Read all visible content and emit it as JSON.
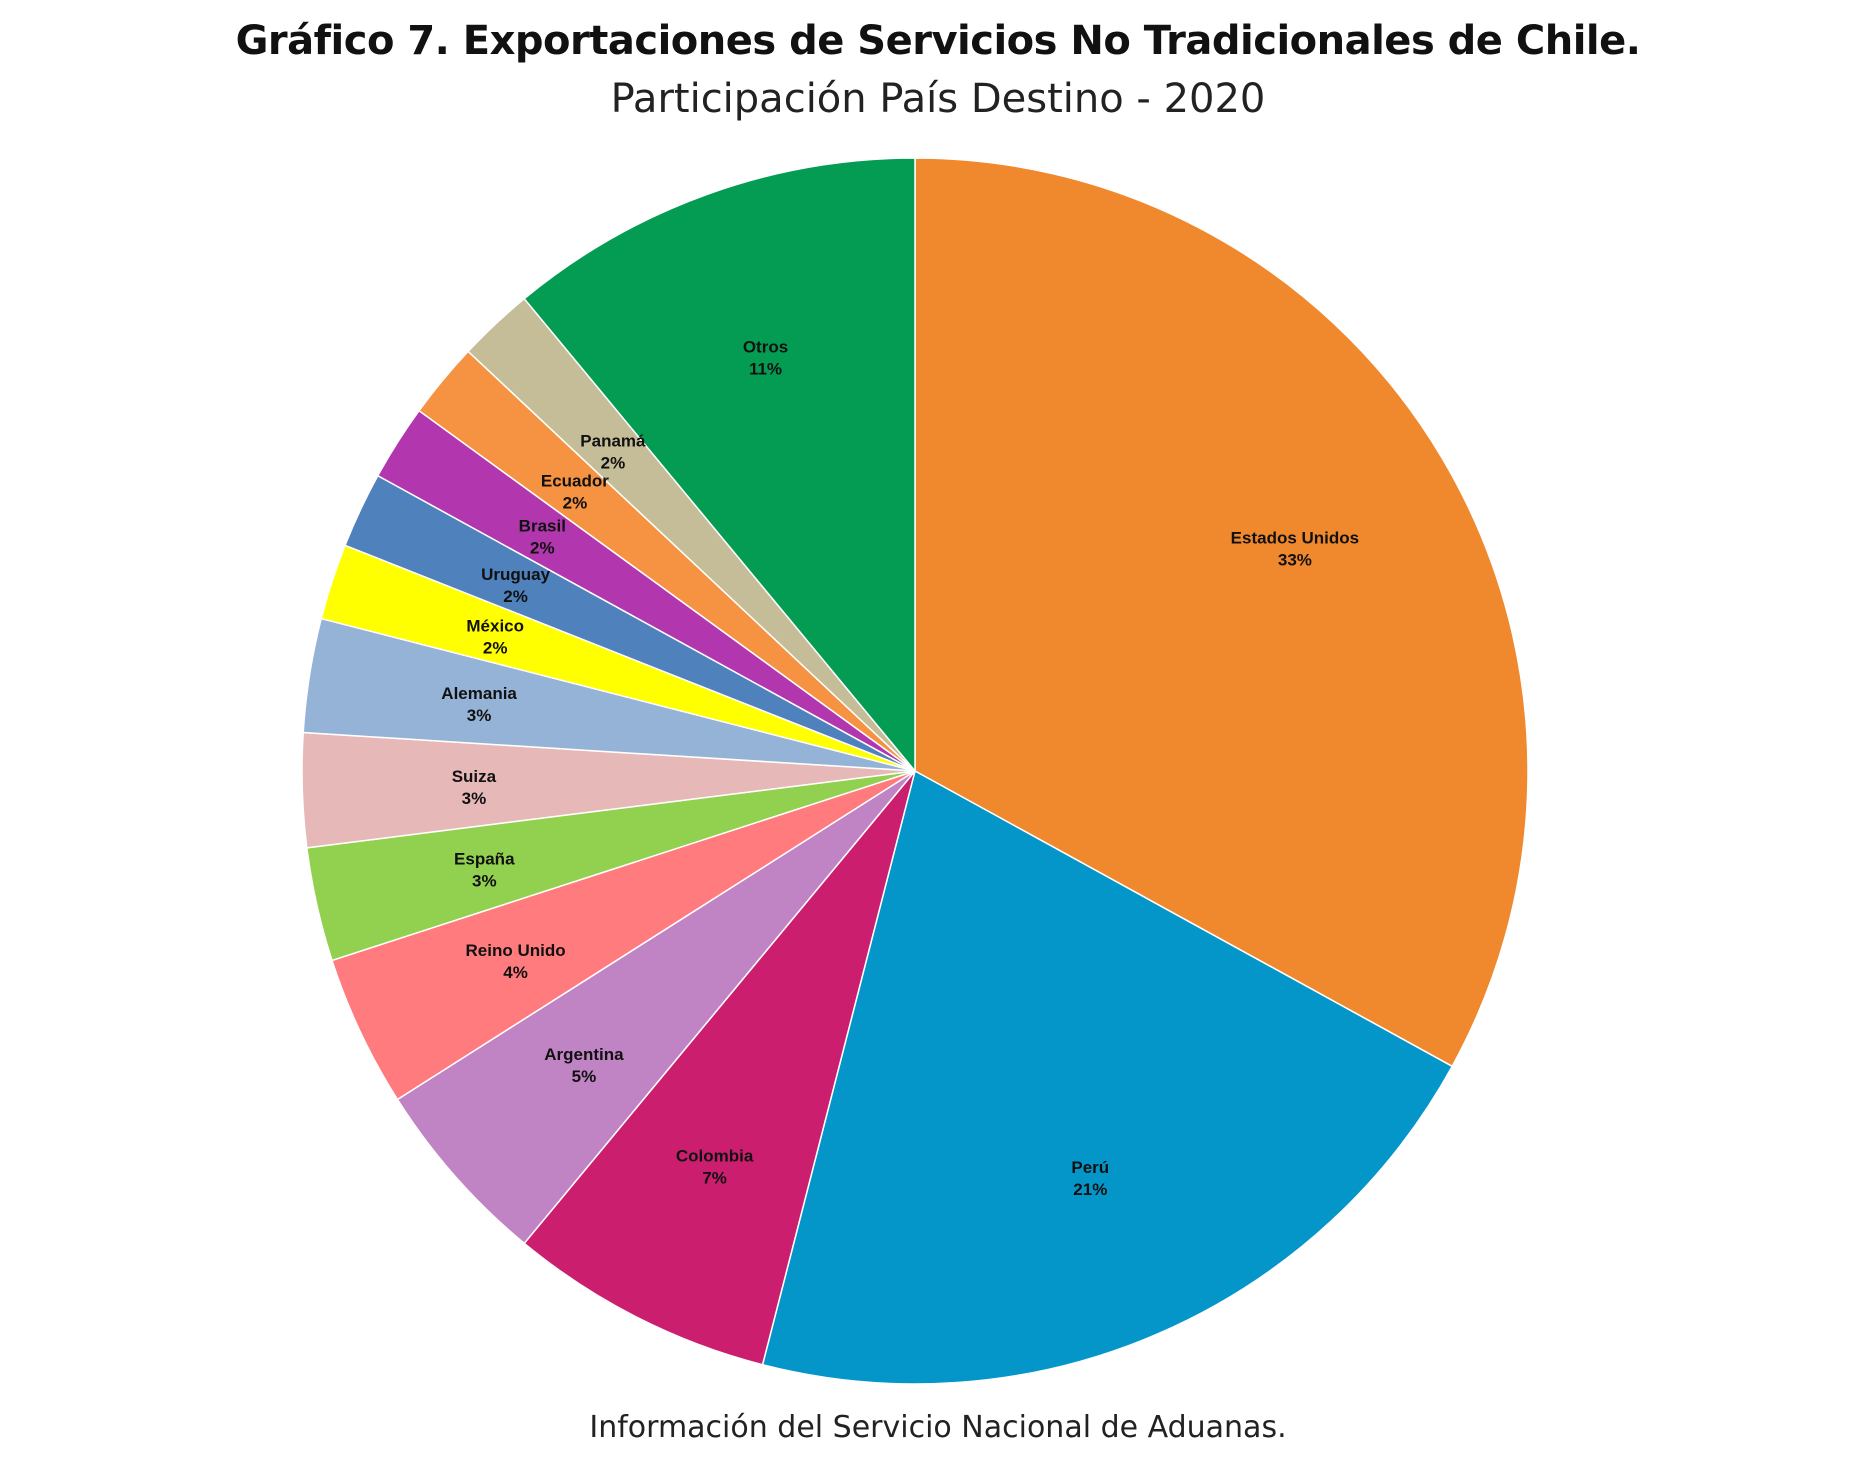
{
  "chart_data": {
    "type": "pie",
    "title": "Gráfico 7. Exportaciones de Servicios No Tradicionales de Chile.",
    "subtitle": "Participación País Destino - 2020",
    "source": "Información del Servicio Nacional de Aduanas.",
    "start": "12 o'clock",
    "direction": "clockwise",
    "slices": [
      {
        "label": "Estados Unidos",
        "value": 33,
        "pct_label": "33%",
        "color": "#F0882D"
      },
      {
        "label": "Perú",
        "value": 21,
        "pct_label": "21%",
        "color": "#0596C9"
      },
      {
        "label": "Colombia",
        "value": 7,
        "pct_label": "7%",
        "color": "#CC1E6E"
      },
      {
        "label": "Argentina",
        "value": 5,
        "pct_label": "5%",
        "color": "#C083C4"
      },
      {
        "label": "Reino Unido",
        "value": 4,
        "pct_label": "4%",
        "color": "#FF7B7D"
      },
      {
        "label": "España",
        "value": 3,
        "pct_label": "3%",
        "color": "#92D050"
      },
      {
        "label": "Suiza",
        "value": 3,
        "pct_label": "3%",
        "color": "#E6B9B8"
      },
      {
        "label": "Alemania",
        "value": 3,
        "pct_label": "3%",
        "color": "#95B3D7"
      },
      {
        "label": "México",
        "value": 2,
        "pct_label": "2%",
        "color": "#FFFF00"
      },
      {
        "label": "Uruguay",
        "value": 2,
        "pct_label": "2%",
        "color": "#4F81BD"
      },
      {
        "label": "Brasil",
        "value": 2,
        "pct_label": "2%",
        "color": "#B236AE"
      },
      {
        "label": "Ecuador",
        "value": 2,
        "pct_label": "2%",
        "color": "#F59342"
      },
      {
        "label": "Panamá",
        "value": 2,
        "pct_label": "2%",
        "color": "#C4BD97"
      },
      {
        "label": "Otros",
        "value": 11,
        "pct_label": "11%",
        "color": "#049C52"
      }
    ]
  }
}
